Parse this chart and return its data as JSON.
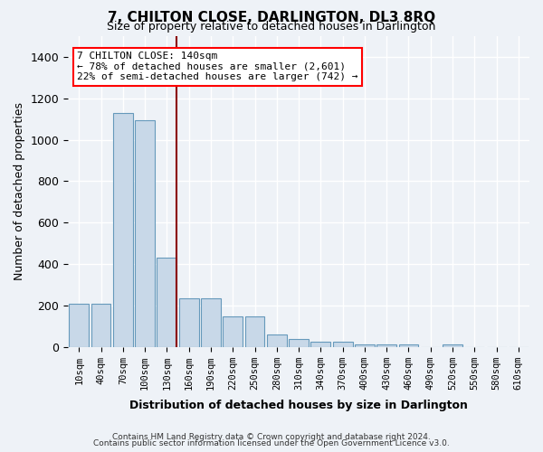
{
  "title1": "7, CHILTON CLOSE, DARLINGTON, DL3 8RQ",
  "title2": "Size of property relative to detached houses in Darlington",
  "xlabel": "Distribution of detached houses by size in Darlington",
  "ylabel": "Number of detached properties",
  "annotation_line1": "7 CHILTON CLOSE: 140sqm",
  "annotation_line2": "← 78% of detached houses are smaller (2,601)",
  "annotation_line3": "22% of semi-detached houses are larger (742) →",
  "footer1": "Contains HM Land Registry data © Crown copyright and database right 2024.",
  "footer2": "Contains public sector information licensed under the Open Government Licence v3.0.",
  "bar_color": "#c8d8e8",
  "bar_edge_color": "#6699bb",
  "red_line_x": 4,
  "categories": [
    "10sqm",
    "40sqm",
    "70sqm",
    "100sqm",
    "130sqm",
    "160sqm",
    "190sqm",
    "220sqm",
    "250sqm",
    "280sqm",
    "310sqm",
    "340sqm",
    "370sqm",
    "400sqm",
    "430sqm",
    "460sqm",
    "490sqm",
    "520sqm",
    "550sqm",
    "580sqm",
    "610sqm"
  ],
  "values": [
    210,
    210,
    1130,
    1095,
    430,
    235,
    235,
    145,
    145,
    58,
    38,
    25,
    25,
    12,
    12,
    12,
    0,
    12,
    0,
    0,
    0
  ],
  "ylim": [
    0,
    1500
  ],
  "yticks": [
    0,
    200,
    400,
    600,
    800,
    1000,
    1200,
    1400
  ],
  "background_color": "#eef2f7",
  "plot_bg_color": "#eef2f7",
  "grid_color": "#ffffff"
}
